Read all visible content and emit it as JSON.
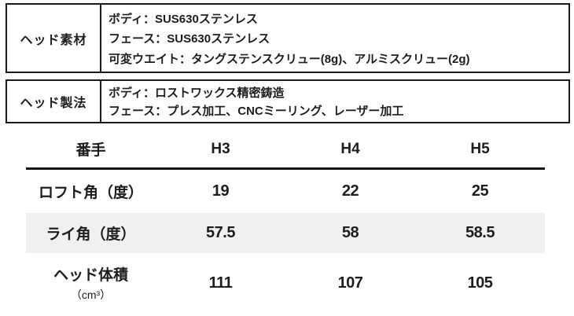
{
  "material_table": {
    "label": "ヘッド素材",
    "rows": [
      "ボディ：SUS630ステンレス",
      "フェース：SUS630ステンレス",
      "可変ウエイト：タングステンスクリュー(8g)、アルミスクリュー(2g)"
    ]
  },
  "method_table": {
    "label": "ヘッド製法",
    "rows": [
      "ボディ：ロストワックス精密鋳造",
      "フェース：プレス加工、CNCミーリング、レーザー加工"
    ]
  },
  "spec_table": {
    "header": [
      "番手",
      "H3",
      "H4",
      "H5"
    ],
    "rows": [
      {
        "label": "ロフト角（度）",
        "values": [
          "19",
          "22",
          "25"
        ]
      },
      {
        "label": "ライ角（度）",
        "values": [
          "57.5",
          "58",
          "58.5"
        ]
      },
      {
        "label": "ヘッド体積",
        "unit": "（cm³）",
        "values": [
          "111",
          "107",
          "105"
        ]
      }
    ]
  },
  "colors": {
    "border": "#1a1a1a",
    "text": "#1d1d1d",
    "row_highlight": "#f0f0ee"
  }
}
